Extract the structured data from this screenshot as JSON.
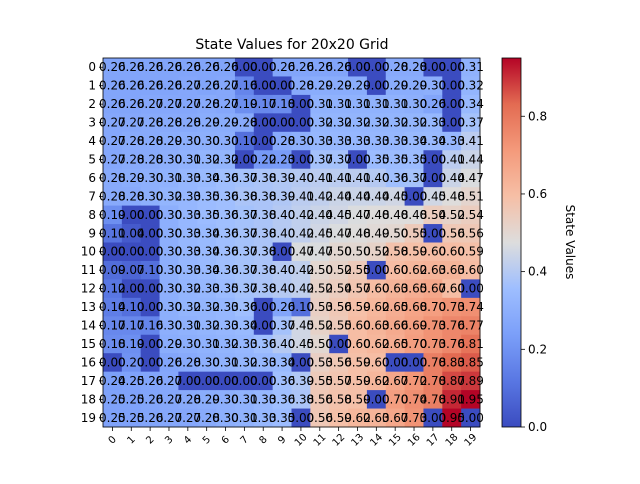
{
  "chart_data": {
    "type": "heatmap",
    "title": "State Values for 20x20 Grid",
    "xlabel": "",
    "ylabel": "",
    "x_ticks": [
      "0",
      "1",
      "2",
      "3",
      "4",
      "5",
      "6",
      "7",
      "8",
      "9",
      "10",
      "11",
      "12",
      "13",
      "14",
      "15",
      "16",
      "17",
      "18",
      "19"
    ],
    "y_ticks": [
      "0",
      "1",
      "2",
      "3",
      "4",
      "5",
      "6",
      "7",
      "8",
      "9",
      "10",
      "11",
      "12",
      "13",
      "14",
      "15",
      "16",
      "17",
      "18",
      "19"
    ],
    "colormap": "coolwarm",
    "vmin": 0.0,
    "vmax": 0.95,
    "colorbar": {
      "label": "State Values",
      "ticks": [
        0.0,
        0.2,
        0.4,
        0.6,
        0.8
      ],
      "tick_labels": [
        "0.0",
        "0.2",
        "0.4",
        "0.6",
        "0.8"
      ]
    },
    "values": [
      [
        0.26,
        0.26,
        0.26,
        0.26,
        0.26,
        0.26,
        0.26,
        0.0,
        0.0,
        0.26,
        0.26,
        0.26,
        0.26,
        0.0,
        0.0,
        0.28,
        0.28,
        0.0,
        0.0,
        0.31
      ],
      [
        0.26,
        0.26,
        0.26,
        0.26,
        0.27,
        0.26,
        0.27,
        0.16,
        0.0,
        0.0,
        0.28,
        0.29,
        0.29,
        0.29,
        0.0,
        0.29,
        0.29,
        0.3,
        0.0,
        0.32
      ],
      [
        0.26,
        0.26,
        0.27,
        0.27,
        0.27,
        0.28,
        0.27,
        0.19,
        0.17,
        0.18,
        0.0,
        0.31,
        0.31,
        0.31,
        0.31,
        0.31,
        0.3,
        0.26,
        0.0,
        0.34
      ],
      [
        0.27,
        0.27,
        0.28,
        0.28,
        0.28,
        0.29,
        0.29,
        0.28,
        0.0,
        0.0,
        0.0,
        0.32,
        0.32,
        0.32,
        0.32,
        0.32,
        0.32,
        0.33,
        0.0,
        0.37
      ],
      [
        0.27,
        0.28,
        0.28,
        0.29,
        0.3,
        0.3,
        0.3,
        0.1,
        0.0,
        0.28,
        0.3,
        0.33,
        0.33,
        0.33,
        0.33,
        0.33,
        0.34,
        0.34,
        0.33,
        0.41
      ],
      [
        0.27,
        0.28,
        0.28,
        0.3,
        0.31,
        0.32,
        0.32,
        0.0,
        0.22,
        0.23,
        0.0,
        0.37,
        0.37,
        0.0,
        0.35,
        0.35,
        0.35,
        0.0,
        0.41,
        0.44
      ],
      [
        0.28,
        0.29,
        0.3,
        0.31,
        0.33,
        0.34,
        0.36,
        0.37,
        0.38,
        0.39,
        0.4,
        0.41,
        0.41,
        0.41,
        0.4,
        0.36,
        0.37,
        0.0,
        0.44,
        0.47
      ],
      [
        0.28,
        0.28,
        0.3,
        0.32,
        0.33,
        0.35,
        0.36,
        0.38,
        0.38,
        0.39,
        0.41,
        0.42,
        0.44,
        0.44,
        0.44,
        0.45,
        0.0,
        0.45,
        0.48,
        0.51
      ],
      [
        0.19,
        0.0,
        0.0,
        0.3,
        0.33,
        0.35,
        0.36,
        0.37,
        0.38,
        0.4,
        0.42,
        0.44,
        0.45,
        0.47,
        0.48,
        0.48,
        0.48,
        0.54,
        0.52,
        0.54
      ],
      [
        0.11,
        0.04,
        0.0,
        0.3,
        0.33,
        0.34,
        0.36,
        0.37,
        0.38,
        0.4,
        0.42,
        0.45,
        0.47,
        0.48,
        0.49,
        0.5,
        0.55,
        0.0,
        0.56,
        0.56
      ],
      [
        0.0,
        0.0,
        0.0,
        0.3,
        0.33,
        0.34,
        0.36,
        0.37,
        0.38,
        0.0,
        0.47,
        0.47,
        0.5,
        0.5,
        0.52,
        0.58,
        0.59,
        0.6,
        0.6,
        0.59
      ],
      [
        0.09,
        0.07,
        0.1,
        0.3,
        0.33,
        0.34,
        0.36,
        0.37,
        0.38,
        0.4,
        0.42,
        0.5,
        0.52,
        0.55,
        0.0,
        0.6,
        0.62,
        0.63,
        0.63,
        0.6
      ],
      [
        0.12,
        0.0,
        0.0,
        0.3,
        0.32,
        0.33,
        0.35,
        0.37,
        0.38,
        0.4,
        0.42,
        0.52,
        0.54,
        0.57,
        0.6,
        0.63,
        0.65,
        0.67,
        0.6,
        0.0
      ],
      [
        0.14,
        0.1,
        0.0,
        0.3,
        0.32,
        0.32,
        0.33,
        0.36,
        0.0,
        0.26,
        0.1,
        0.53,
        0.56,
        0.59,
        0.62,
        0.65,
        0.68,
        0.7,
        0.73,
        0.74
      ],
      [
        0.17,
        0.17,
        0.16,
        0.3,
        0.31,
        0.32,
        0.33,
        0.34,
        0.0,
        0.37,
        0.45,
        0.52,
        0.55,
        0.6,
        0.63,
        0.66,
        0.69,
        0.73,
        0.76,
        0.77
      ],
      [
        0.18,
        0.19,
        0.0,
        0.29,
        0.3,
        0.31,
        0.32,
        0.33,
        0.36,
        0.4,
        0.45,
        0.5,
        0.0,
        0.6,
        0.62,
        0.65,
        0.7,
        0.73,
        0.76,
        0.81
      ],
      [
        0.0,
        0.2,
        0.0,
        0.26,
        0.28,
        0.3,
        0.31,
        0.32,
        0.33,
        0.34,
        0.0,
        0.53,
        0.56,
        0.59,
        0.6,
        0.0,
        0.0,
        0.78,
        0.83,
        0.85
      ],
      [
        0.24,
        0.25,
        0.26,
        0.27,
        0.0,
        0.0,
        0.0,
        0.0,
        0.0,
        0.36,
        0.39,
        0.55,
        0.57,
        0.59,
        0.62,
        0.67,
        0.72,
        0.78,
        0.87,
        0.89
      ],
      [
        0.25,
        0.25,
        0.26,
        0.27,
        0.28,
        0.29,
        0.3,
        0.31,
        0.33,
        0.36,
        0.38,
        0.56,
        0.58,
        0.59,
        0.0,
        0.7,
        0.74,
        0.78,
        0.91,
        0.95
      ],
      [
        0.25,
        0.25,
        0.26,
        0.27,
        0.27,
        0.28,
        0.3,
        0.31,
        0.33,
        0.35,
        0.0,
        0.56,
        0.59,
        0.62,
        0.63,
        0.67,
        0.73,
        0.0,
        0.95,
        0.0
      ]
    ]
  }
}
